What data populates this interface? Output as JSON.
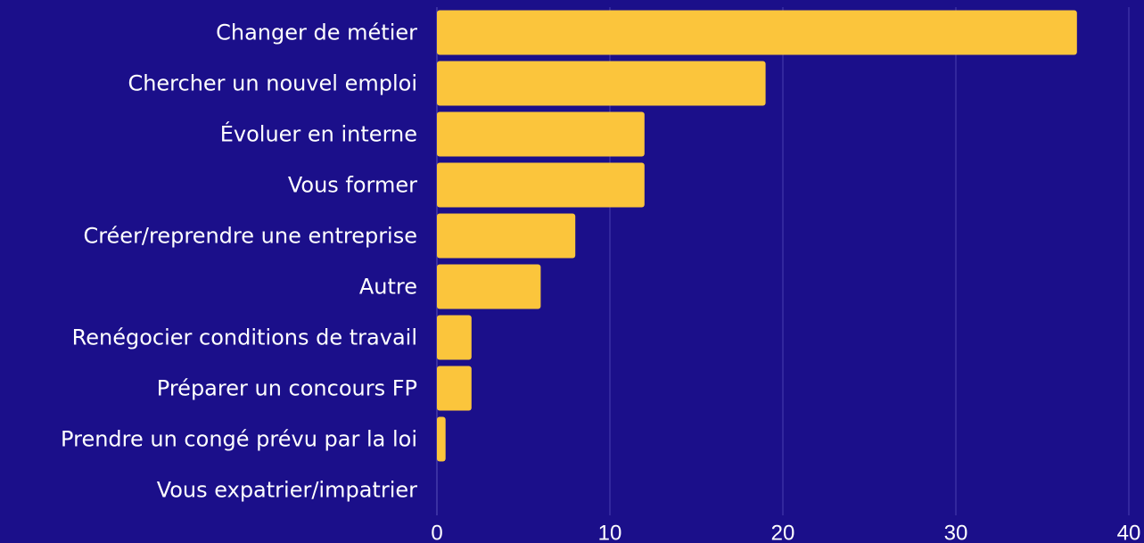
{
  "chart_data": {
    "type": "hbar",
    "categories": [
      "Changer de métier",
      "Chercher un nouvel emploi",
      "Évoluer en interne",
      "Vous former",
      "Créer/reprendre une entreprise",
      "Autre",
      "Renégocier conditions de travail",
      "Préparer un concours FP",
      "Prendre un congé prévu par la loi",
      "Vous expatrier/impatrier"
    ],
    "values": [
      37,
      19,
      12,
      12,
      8,
      6,
      2,
      2,
      0.5,
      0
    ],
    "color": "#fbc53c",
    "xlim": [
      0,
      40
    ],
    "xticks": [
      0,
      10,
      20,
      30,
      40
    ],
    "grid": true
  }
}
